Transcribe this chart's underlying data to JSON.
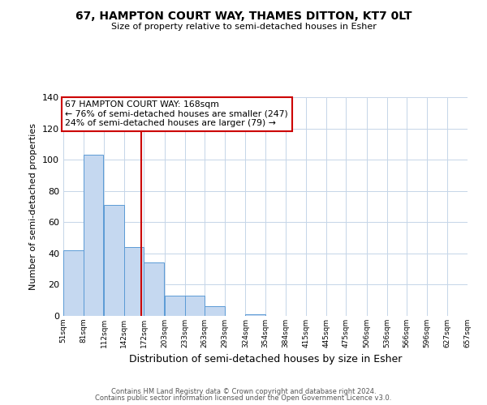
{
  "title1": "67, HAMPTON COURT WAY, THAMES DITTON, KT7 0LT",
  "title2": "Size of property relative to semi-detached houses in Esher",
  "xlabel": "Distribution of semi-detached houses by size in Esher",
  "ylabel": "Number of semi-detached properties",
  "bin_labels": [
    "51sqm",
    "81sqm",
    "112sqm",
    "142sqm",
    "172sqm",
    "203sqm",
    "233sqm",
    "263sqm",
    "293sqm",
    "324sqm",
    "354sqm",
    "384sqm",
    "415sqm",
    "445sqm",
    "475sqm",
    "506sqm",
    "536sqm",
    "566sqm",
    "596sqm",
    "627sqm",
    "657sqm"
  ],
  "bin_edges": [
    51,
    81,
    112,
    142,
    172,
    203,
    233,
    263,
    293,
    324,
    354,
    384,
    415,
    445,
    475,
    506,
    536,
    566,
    596,
    627,
    657
  ],
  "counts": [
    42,
    103,
    71,
    44,
    34,
    13,
    13,
    6,
    0,
    1,
    0,
    0,
    0,
    0,
    0,
    0,
    0,
    0,
    0,
    0,
    2
  ],
  "bar_color": "#c5d8f0",
  "bar_edge_color": "#5b9bd5",
  "property_value": 168,
  "vline_color": "#cc0000",
  "annotation_title": "67 HAMPTON COURT WAY: 168sqm",
  "annotation_line1": "← 76% of semi-detached houses are smaller (247)",
  "annotation_line2": "24% of semi-detached houses are larger (79) →",
  "annotation_box_edge_color": "#cc0000",
  "ylim": [
    0,
    140
  ],
  "yticks": [
    0,
    20,
    40,
    60,
    80,
    100,
    120,
    140
  ],
  "footer1": "Contains HM Land Registry data © Crown copyright and database right 2024.",
  "footer2": "Contains public sector information licensed under the Open Government Licence v3.0."
}
